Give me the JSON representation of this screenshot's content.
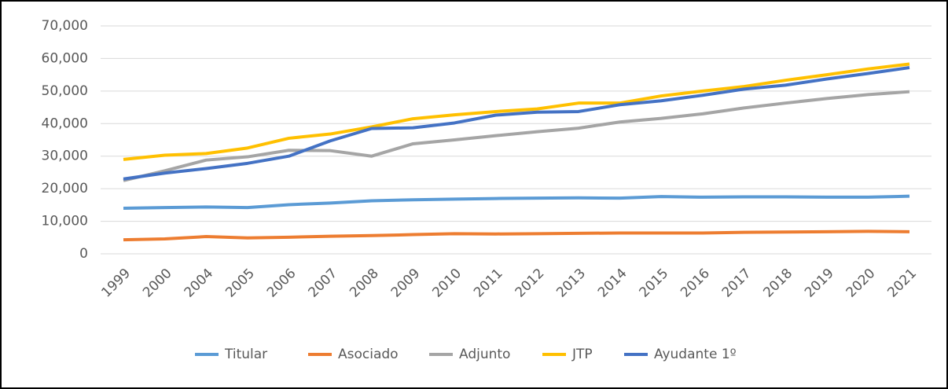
{
  "chart_data": {
    "type": "line",
    "categories": [
      "1999",
      "2000",
      "2004",
      "2005",
      "2006",
      "2007",
      "2008",
      "2009",
      "2010",
      "2011",
      "2012",
      "2013",
      "2014",
      "2015",
      "2016",
      "2017",
      "2018",
      "2019",
      "2020",
      "2021"
    ],
    "series": [
      {
        "name": "Titular",
        "color": "#5b9bd5",
        "values": [
          14000,
          14200,
          14400,
          14200,
          15100,
          15600,
          16300,
          16600,
          16800,
          17000,
          17100,
          17200,
          17100,
          17600,
          17400,
          17500,
          17500,
          17400,
          17400,
          17700
        ]
      },
      {
        "name": "Asociado",
        "color": "#ed7d31",
        "values": [
          4300,
          4600,
          5300,
          4900,
          5100,
          5400,
          5600,
          5900,
          6200,
          6100,
          6200,
          6300,
          6400,
          6400,
          6400,
          6600,
          6700,
          6800,
          6900,
          6800
        ]
      },
      {
        "name": "Adjunto",
        "color": "#a5a5a5",
        "values": [
          22500,
          25500,
          28800,
          29800,
          31800,
          31700,
          30000,
          33800,
          35000,
          36300,
          37500,
          38600,
          40500,
          41600,
          43000,
          44800,
          46300,
          47700,
          48900,
          49800
        ]
      },
      {
        "name": "JTP",
        "color": "#ffc000",
        "values": [
          29000,
          30300,
          30800,
          32500,
          35500,
          36800,
          39000,
          41500,
          42700,
          43700,
          44500,
          46300,
          46300,
          48500,
          50000,
          51400,
          53300,
          55000,
          56800,
          58300
        ]
      },
      {
        "name": "Ayudante 1º",
        "color": "#4472c4",
        "values": [
          23000,
          24800,
          26200,
          27800,
          30000,
          34700,
          38500,
          38700,
          40200,
          42600,
          43500,
          43700,
          45800,
          47000,
          48700,
          50600,
          51800,
          53700,
          55400,
          57200
        ]
      }
    ],
    "ylim": [
      0,
      70000
    ],
    "yticks": [
      0,
      {
        "value": 10000,
        "label": "10,000"
      },
      {
        "value": 20000,
        "label": "20,000"
      },
      {
        "value": 30000,
        "label": "30,000"
      },
      {
        "value": 40000,
        "label": "40,000"
      },
      {
        "value": 50000,
        "label": "50,000"
      },
      {
        "value": 60000,
        "label": "60,000"
      },
      {
        "value": 70000,
        "label": "70,000"
      }
    ],
    "grid": true,
    "legend": "bottom"
  }
}
